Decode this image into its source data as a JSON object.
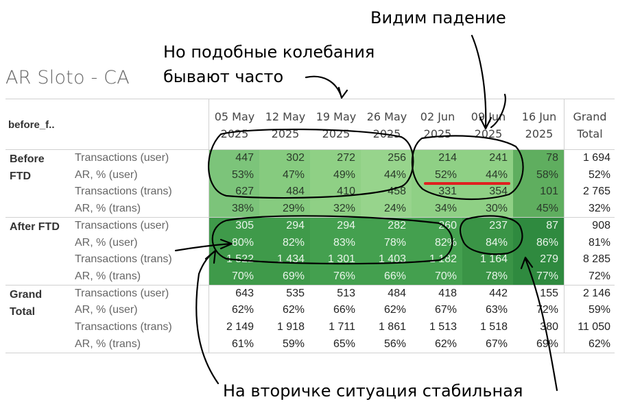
{
  "title": "AR Sloto - CA",
  "annotations": {
    "top_left_line1": "Но подобные колебания",
    "top_left_line2": "бывают часто",
    "top_right": "Видим падение",
    "bottom": "На вторичке ситуация стабильная"
  },
  "row_dim_header": "before_f..",
  "columns": [
    {
      "line1": "05 May",
      "line2": "2025"
    },
    {
      "line1": "12 May",
      "line2": "2025"
    },
    {
      "line1": "19 May",
      "line2": "2025"
    },
    {
      "line1": "26 May",
      "line2": "2025"
    },
    {
      "line1": "02 Jun",
      "line2": "2025"
    },
    {
      "line1": "09 Jun",
      "line2": "2025"
    },
    {
      "line1": "16 Jun",
      "line2": "2025"
    }
  ],
  "grand_total_header": {
    "line1": "Grand",
    "line2": "Total"
  },
  "groups": [
    {
      "label_line1": "Before",
      "label_line2": "FTD",
      "rows": [
        {
          "measure": "Transactions (user)",
          "values": [
            "447",
            "302",
            "272",
            "256",
            "214",
            "241",
            "78"
          ],
          "total": "1 694"
        },
        {
          "measure": "AR, % (user)",
          "values": [
            "53%",
            "47%",
            "49%",
            "44%",
            "52%",
            "44%",
            "58%"
          ],
          "total": "52%"
        },
        {
          "measure": "Transactions (trans)",
          "values": [
            "627",
            "484",
            "410",
            "458",
            "331",
            "354",
            "101"
          ],
          "total": "2 765"
        },
        {
          "measure": "AR, % (trans)",
          "values": [
            "38%",
            "29%",
            "32%",
            "24%",
            "34%",
            "30%",
            "45%"
          ],
          "total": "32%"
        }
      ]
    },
    {
      "label_line1": "After FTD",
      "label_line2": "",
      "rows": [
        {
          "measure": "Transactions (user)",
          "values": [
            "305",
            "294",
            "294",
            "282",
            "260",
            "237",
            "87"
          ],
          "total": "908"
        },
        {
          "measure": "AR, % (user)",
          "values": [
            "80%",
            "82%",
            "83%",
            "78%",
            "82%",
            "84%",
            "86%"
          ],
          "total": "81%"
        },
        {
          "measure": "Transactions (trans)",
          "values": [
            "1 522",
            "1 434",
            "1 301",
            "1 403",
            "1 182",
            "1 164",
            "279"
          ],
          "total": "8 285"
        },
        {
          "measure": "AR, % (trans)",
          "values": [
            "70%",
            "69%",
            "76%",
            "66%",
            "70%",
            "78%",
            "77%"
          ],
          "total": "72%"
        }
      ]
    },
    {
      "label_line1": "Grand",
      "label_line2": "Total",
      "rows": [
        {
          "measure": "Transactions (user)",
          "values": [
            "643",
            "535",
            "513",
            "484",
            "418",
            "442",
            "155"
          ],
          "total": "2 146"
        },
        {
          "measure": "AR, % (user)",
          "values": [
            "62%",
            "62%",
            "66%",
            "62%",
            "67%",
            "63%",
            "72%"
          ],
          "total": "59%"
        },
        {
          "measure": "Transactions (trans)",
          "values": [
            "2 149",
            "1 918",
            "1 711",
            "1 861",
            "1 513",
            "1 518",
            "380"
          ],
          "total": "11 050"
        },
        {
          "measure": "AR, % (trans)",
          "values": [
            "61%",
            "59%",
            "65%",
            "56%",
            "62%",
            "67%",
            "69%"
          ],
          "total": "62%"
        }
      ]
    }
  ],
  "colors": {
    "before_ftd_cells": [
      "#7cc47a",
      "#86cb7f",
      "#8fd085",
      "#97d48c",
      "#8fd085",
      "#8fd085",
      "#5fae5f"
    ],
    "after_ftd_cells": [
      "#3f9a4a",
      "#3f9a4a",
      "#44a04f",
      "#44a04f",
      "#44a04f",
      "#3a9446",
      "#2f8a3f"
    ],
    "highlight_underline": "#e02020"
  }
}
